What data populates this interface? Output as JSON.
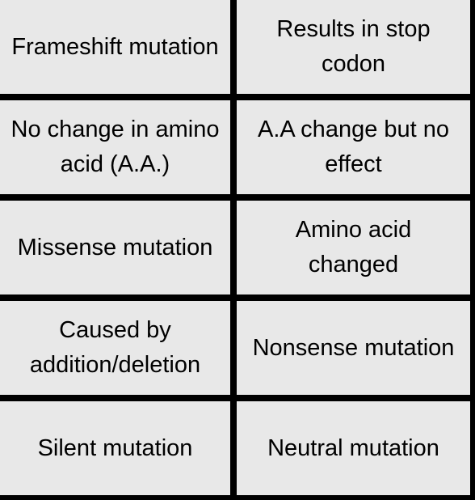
{
  "colors": {
    "card_background": "#e8e8e8",
    "grid_lines": "#000000",
    "text": "#000000"
  },
  "rows": [
    {
      "left": "Frameshift mutation",
      "right": "Results in stop\ncodon"
    },
    {
      "left": "No change in amino\nacid (A.A.)",
      "right": "A.A change but no\neffect"
    },
    {
      "left": "Missense mutation",
      "right": "Amino acid\nchanged"
    },
    {
      "left": "Caused by\naddition/deletion",
      "right": "Nonsense mutation"
    },
    {
      "left": "Silent mutation",
      "right": "Neutral mutation"
    }
  ]
}
